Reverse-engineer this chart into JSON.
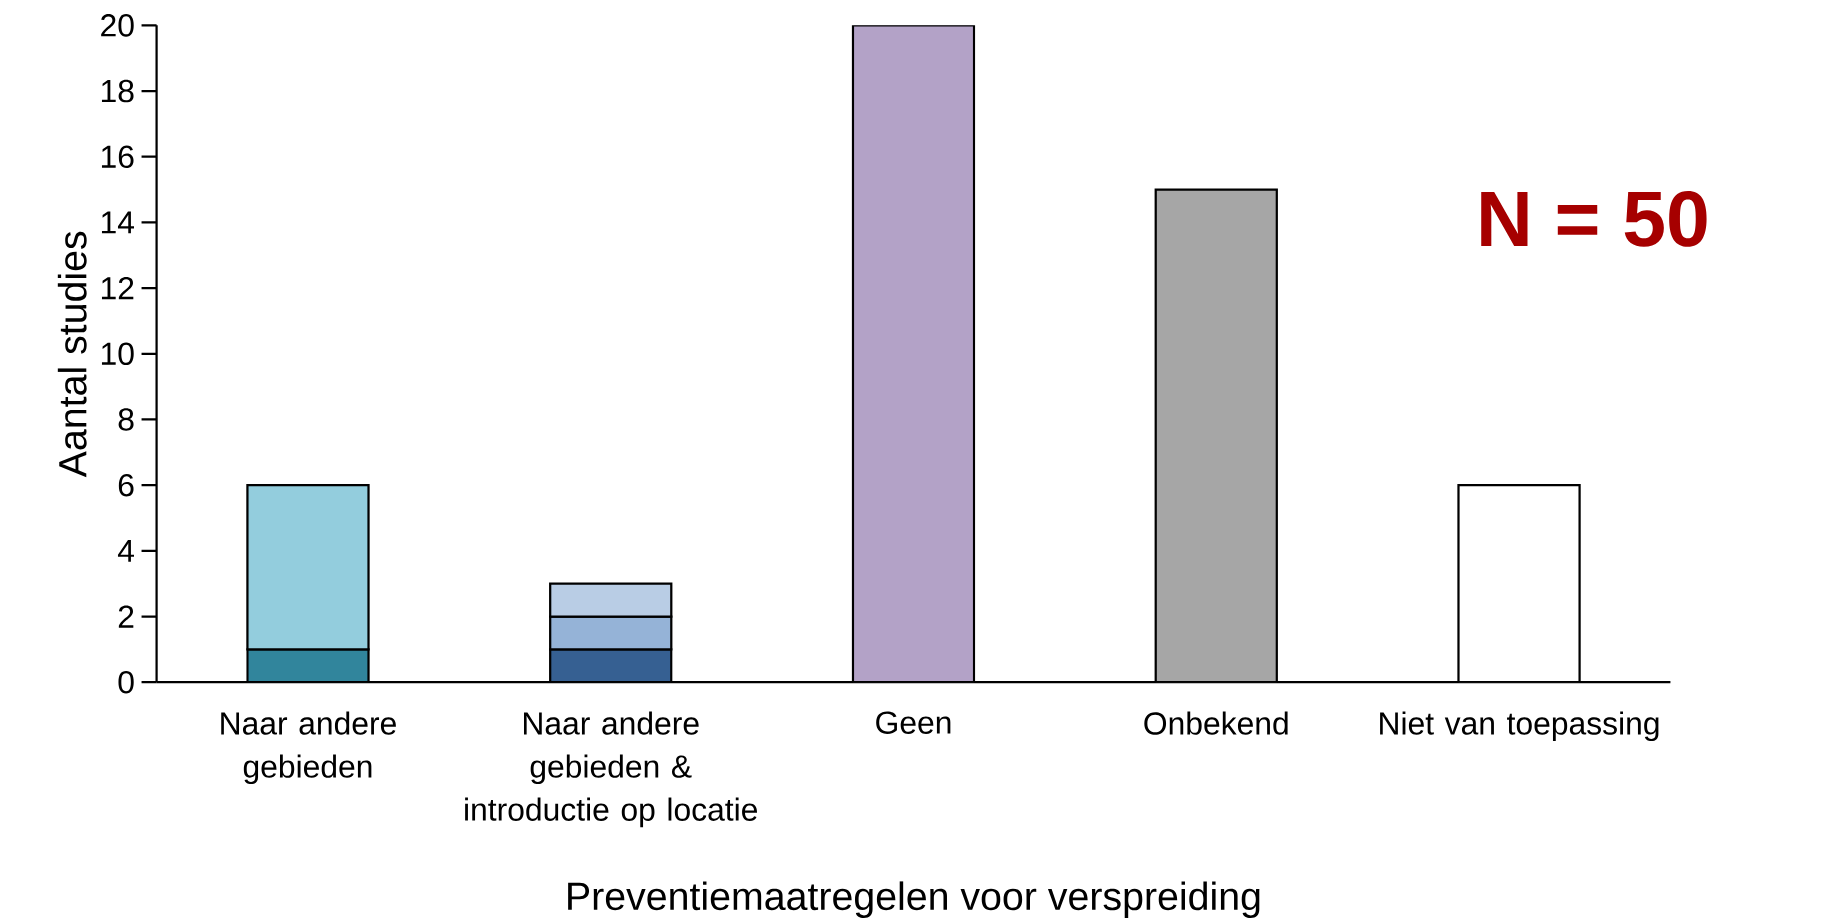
{
  "chart_data": {
    "type": "bar",
    "stacked": true,
    "xlabel": "Preventiemaatregelen voor verspreiding",
    "ylabel": "Aantal studies",
    "categories": [
      "Naar andere gebieden",
      "Naar andere gebieden & introductie op locatie",
      "Geen",
      "Onbekend",
      "Niet van toepassing"
    ],
    "series": [
      {
        "values": [
          1,
          1,
          20,
          15,
          6
        ],
        "colors": [
          "#31859c",
          "#366092",
          "#b3a2c7",
          "#a6a6a6",
          "#ffffff"
        ]
      },
      {
        "values": [
          5,
          1,
          null,
          null,
          null
        ],
        "colors": [
          "#93cddd",
          "#95b3d7",
          null,
          null,
          null
        ]
      },
      {
        "values": [
          null,
          1,
          null,
          null,
          null
        ],
        "colors": [
          null,
          "#b9cde5",
          null,
          null,
          null
        ]
      }
    ],
    "ylim": [
      0,
      20
    ],
    "yticks": [
      0,
      2,
      4,
      6,
      8,
      10,
      12,
      14,
      16,
      18,
      20
    ],
    "grid": false,
    "annotations": [
      "N = 50"
    ]
  }
}
